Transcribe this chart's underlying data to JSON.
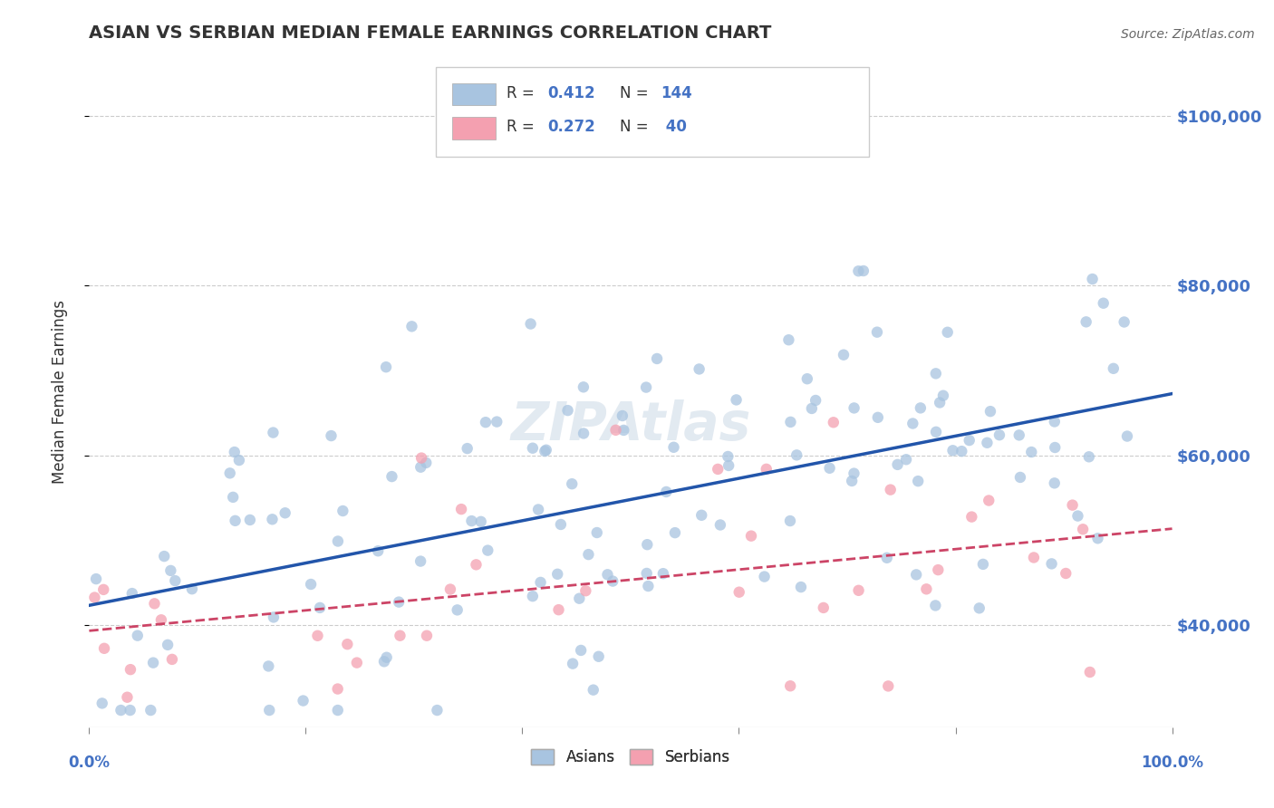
{
  "title": "ASIAN VS SERBIAN MEDIAN FEMALE EARNINGS CORRELATION CHART",
  "source": "Source: ZipAtlas.com",
  "ylabel": "Median Female Earnings",
  "ytick_labels": [
    "$40,000",
    "$60,000",
    "$80,000",
    "$100,000"
  ],
  "ytick_values": [
    40000,
    60000,
    80000,
    100000
  ],
  "R_asian": 0.412,
  "N_asian": 144,
  "R_serbian": 0.272,
  "N_serbian": 40,
  "title_color": "#333333",
  "source_color": "#666666",
  "tick_color": "#4472c4",
  "blue_dot_color": "#a8c4e0",
  "pink_dot_color": "#f4a0b0",
  "blue_line_color": "#2255aa",
  "pink_line_color": "#cc4466",
  "grid_color": "#cccccc",
  "background_color": "#ffffff",
  "watermark_color": "#d0dce8",
  "xmin": 0,
  "xmax": 100,
  "ymin": 28000,
  "ymax": 107000,
  "dot_size": 80,
  "dot_alpha": 0.75
}
